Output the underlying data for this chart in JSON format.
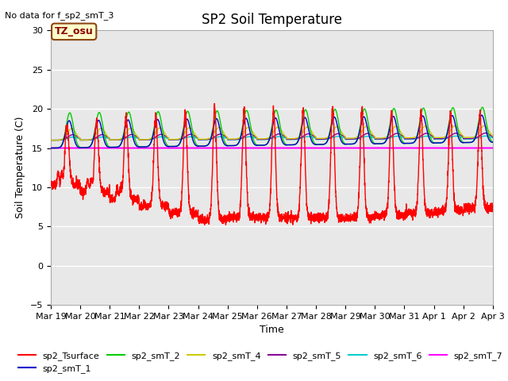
{
  "title": "SP2 Soil Temperature",
  "no_data_text": "No data for f_sp2_smT_3",
  "tz_label": "TZ_osu",
  "ylabel": "Soil Temperature (C)",
  "xlabel": "Time",
  "ylim": [
    -5,
    30
  ],
  "yticks": [
    -5,
    0,
    5,
    10,
    15,
    20,
    25,
    30
  ],
  "n_days": 15,
  "xtick_labels": [
    "Mar 19",
    "Mar 20",
    "Mar 21",
    "Mar 22",
    "Mar 23",
    "Mar 24",
    "Mar 25",
    "Mar 26",
    "Mar 27",
    "Mar 28",
    "Mar 29",
    "Mar 30",
    "Mar 31",
    "Apr 1",
    "Apr 2",
    "Apr 3"
  ],
  "colors": {
    "sp2_Tsurface": "#ff0000",
    "sp2_smT_1": "#0000cc",
    "sp2_smT_2": "#00cc00",
    "sp2_smT_4": "#cccc00",
    "sp2_smT_5": "#880099",
    "sp2_smT_6": "#00cccc",
    "sp2_smT_7": "#ff00ff"
  },
  "bg_color": "#ffffff",
  "plot_bg": "#e8e8e8",
  "grid_color": "#ffffff",
  "title_fontsize": 12,
  "label_fontsize": 9,
  "tick_fontsize": 8,
  "legend_fontsize": 8
}
